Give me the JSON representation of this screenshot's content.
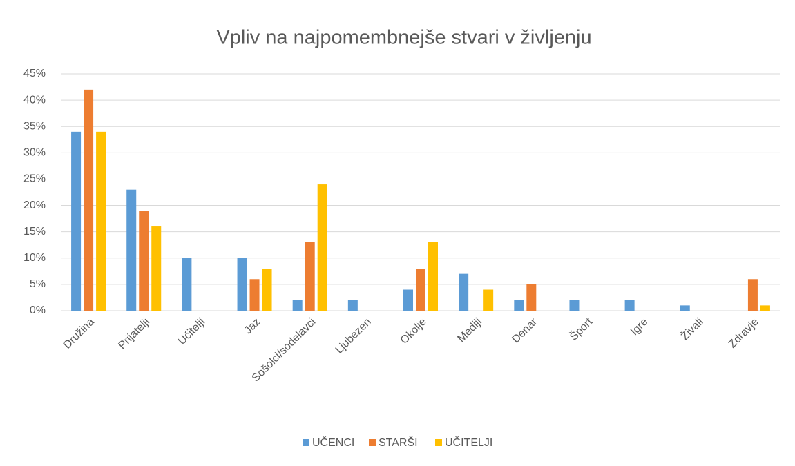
{
  "chart_data": {
    "type": "bar",
    "title": "Vpliv na najpomembnejše stvari v življenju",
    "categories": [
      "Družina",
      "Prijatelji",
      "Učitelji",
      "Jaz",
      "Sošolci/sodelavci",
      "Ljubezen",
      "Okolje",
      "Mediji",
      "Denar",
      "Šport",
      "Igre",
      "Živali",
      "Zdravje"
    ],
    "series": [
      {
        "name": "UČENCI",
        "color": "#5b9bd5",
        "values": [
          34,
          23,
          10,
          10,
          2,
          2,
          4,
          7,
          2,
          2,
          2,
          1,
          0
        ]
      },
      {
        "name": "STARŠI",
        "color": "#ed7d31",
        "values": [
          42,
          19,
          0,
          6,
          13,
          0,
          8,
          0,
          5,
          0,
          0,
          0,
          6
        ]
      },
      {
        "name": "UČITELJI",
        "color": "#ffc000",
        "values": [
          34,
          16,
          0,
          8,
          24,
          0,
          13,
          4,
          0,
          0,
          0,
          0,
          1
        ]
      }
    ],
    "ylim": [
      0,
      45
    ],
    "yticks": [
      {
        "value": 0,
        "label": "0%"
      },
      {
        "value": 5,
        "label": "5%"
      },
      {
        "value": 10,
        "label": "10%"
      },
      {
        "value": 15,
        "label": "15%"
      },
      {
        "value": 20,
        "label": "20%"
      },
      {
        "value": 25,
        "label": "25%"
      },
      {
        "value": 30,
        "label": "30%"
      },
      {
        "value": 35,
        "label": "35%"
      },
      {
        "value": 40,
        "label": "40%"
      },
      {
        "value": 45,
        "label": "45%"
      }
    ],
    "grid": true,
    "legend": "bottom"
  }
}
